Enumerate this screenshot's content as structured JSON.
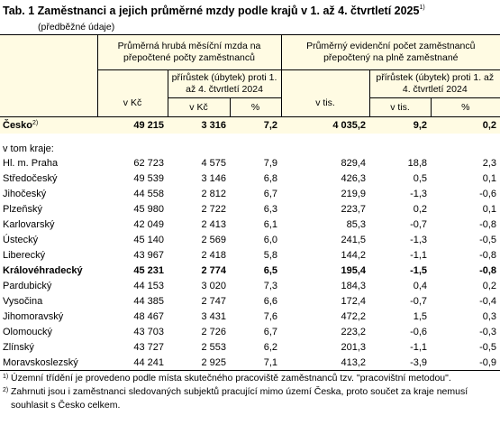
{
  "header": {
    "title": "Tab. 1 Zaměstnanci a jejich průměrné mzdy podle krajů v 1. až 4. čtvrtletí 2025",
    "title_note": "1)",
    "subtitle": "(předběžné údaje)"
  },
  "table": {
    "groups": [
      {
        "label": "Průměrná hrubá měsíční mzda na přepočtené počty zaměstnanců",
        "level": "v Kč",
        "change": "přírůstek (úbytek) proti 1. až 4. čtvrtletí 2024",
        "change_units": [
          "v Kč",
          "%"
        ]
      },
      {
        "label": "Průměrný evidenční počet zaměstnanců přepočtený na plně zaměstnané",
        "level": "v tis.",
        "change": "přírůstek (úbytek) proti 1. až 4. čtvrtletí 2024",
        "change_units": [
          "v tis.",
          "%"
        ]
      }
    ],
    "total": {
      "label": "Česko",
      "note": "2)",
      "values": [
        "49 215",
        "3 316",
        "7,2",
        "4 035,2",
        "9,2",
        "0,2"
      ]
    },
    "section_label": "v tom kraje:",
    "rows": [
      {
        "label": "Hl. m. Praha",
        "values": [
          "62 723",
          "4 575",
          "7,9",
          "829,4",
          "18,8",
          "2,3"
        ]
      },
      {
        "label": "Středočeský",
        "values": [
          "49 539",
          "3 146",
          "6,8",
          "426,3",
          "0,5",
          "0,1"
        ]
      },
      {
        "label": "Jihočeský",
        "values": [
          "44 558",
          "2 812",
          "6,7",
          "219,9",
          "-1,3",
          "-0,6"
        ]
      },
      {
        "label": "Plzeňský",
        "values": [
          "45 980",
          "2 722",
          "6,3",
          "223,7",
          "0,2",
          "0,1"
        ]
      },
      {
        "label": "Karlovarský",
        "values": [
          "42 049",
          "2 413",
          "6,1",
          "85,3",
          "-0,7",
          "-0,8"
        ]
      },
      {
        "label": "Ústecký",
        "values": [
          "45 140",
          "2 569",
          "6,0",
          "241,5",
          "-1,3",
          "-0,5"
        ]
      },
      {
        "label": "Liberecký",
        "values": [
          "43 967",
          "2 418",
          "5,8",
          "144,2",
          "-1,1",
          "-0,8"
        ]
      },
      {
        "label": "Královéhradecký",
        "bold": true,
        "values": [
          "45 231",
          "2 774",
          "6,5",
          "195,4",
          "-1,5",
          "-0,8"
        ]
      },
      {
        "label": "Pardubický",
        "values": [
          "44 153",
          "3 020",
          "7,3",
          "184,3",
          "0,4",
          "0,2"
        ]
      },
      {
        "label": "Vysočina",
        "values": [
          "44 385",
          "2 747",
          "6,6",
          "172,4",
          "-0,7",
          "-0,4"
        ]
      },
      {
        "label": "Jihomoravský",
        "values": [
          "48 467",
          "3 431",
          "7,6",
          "472,2",
          "1,5",
          "0,3"
        ]
      },
      {
        "label": "Olomoucký",
        "values": [
          "43 703",
          "2 726",
          "6,7",
          "223,2",
          "-0,6",
          "-0,3"
        ]
      },
      {
        "label": "Zlínský",
        "values": [
          "43 727",
          "2 553",
          "6,2",
          "201,3",
          "-1,1",
          "-0,5"
        ]
      },
      {
        "label": "Moravskoslezský",
        "values": [
          "44 241",
          "2 925",
          "7,1",
          "413,2",
          "-3,9",
          "-0,9"
        ]
      }
    ]
  },
  "footnotes": [
    {
      "marker": "1)",
      "text": "Územní třídění je provedeno podle místa skutečného pracoviště zaměstnanců tzv. \"pracovištní metodou\"."
    },
    {
      "marker": "2)",
      "text": "Zahrnuti jsou i zaměstnanci sledovaných subjektů pracující mimo území Česka, proto součet za kraje nemusí souhlasit s Česko celkem."
    }
  ]
}
